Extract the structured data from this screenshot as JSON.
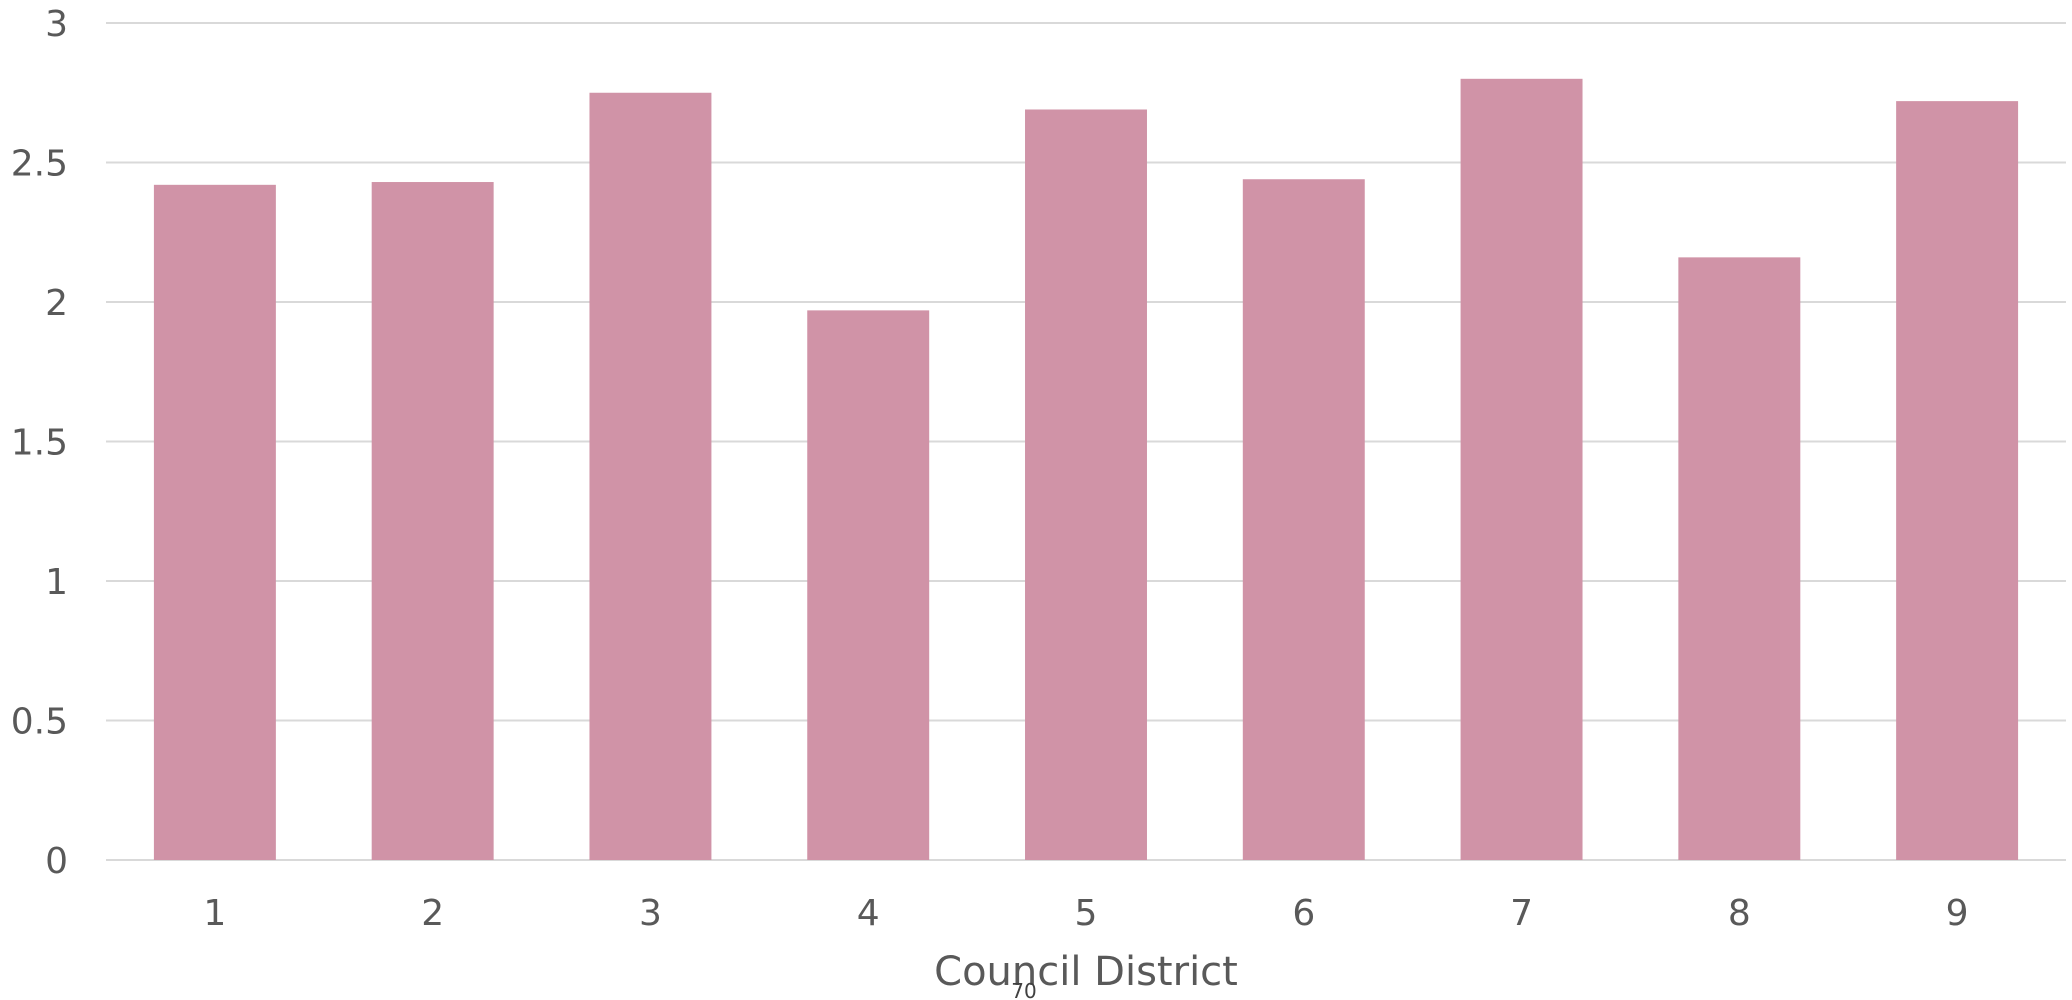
{
  "chart_data": {
    "type": "bar",
    "title": "",
    "xlabel": "Council District",
    "ylabel": "",
    "categories": [
      "1",
      "2",
      "3",
      "4",
      "5",
      "6",
      "7",
      "8",
      "9"
    ],
    "values": [
      2.42,
      2.43,
      2.75,
      1.97,
      2.69,
      2.44,
      2.8,
      2.16,
      2.72
    ],
    "ylim": [
      0,
      3
    ],
    "yticks": [
      "0",
      "0.5",
      "1",
      "1.5",
      "2",
      "2.5",
      "3"
    ],
    "grid": true,
    "legend": "none",
    "bar_color": "#D093A7",
    "grid_color": "#D9D9D9",
    "text_color": "#595959"
  },
  "page": {
    "number": "70"
  }
}
